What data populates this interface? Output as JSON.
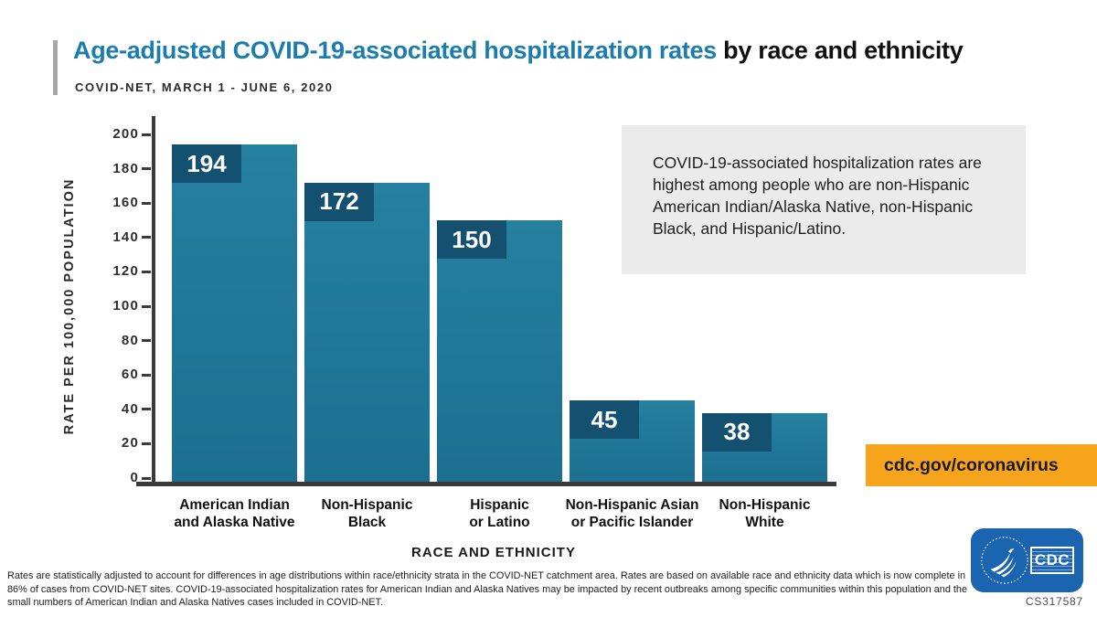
{
  "header": {
    "title_highlight": "Age-adjusted COVID-19-associated hospitalization rates",
    "title_rest": " by race and ethnicity",
    "subtitle": "COVID-NET, MARCH 1 - JUNE 6, 2020",
    "accent_color": "#1B7CAE"
  },
  "chart_data": {
    "type": "bar",
    "title": "Age-adjusted COVID-19-associated hospitalization rates by race and ethnicity",
    "subtitle": "COVID-NET, MARCH 1 - JUNE 6, 2020",
    "categories": [
      "American Indian and Alaska Native",
      "Non-Hispanic Black",
      "Hispanic or Latino",
      "Non-Hispanic Asian or Pacific Islander",
      "Non-Hispanic White"
    ],
    "category_lines": [
      [
        "American Indian",
        "and Alaska Native"
      ],
      [
        "Non-Hispanic",
        "Black"
      ],
      [
        "Hispanic",
        "or Latino"
      ],
      [
        "Non-Hispanic Asian",
        "or Pacific Islander"
      ],
      [
        "Non-Hispanic",
        "White"
      ]
    ],
    "values": [
      194,
      172,
      150,
      45,
      38
    ],
    "xlabel": "RACE AND ETHNICITY",
    "ylabel": "RATE PER 100,000 POPULATION",
    "ylim": [
      0,
      200
    ],
    "ytick_step": 20,
    "grid": false,
    "legend": "none",
    "bar_color": "#1E7495",
    "value_box_color": "#14506F"
  },
  "callout": {
    "text": "COVID-19-associated hospitalization rates are highest among people who are non-Hispanic American Indian/Alaska Native, non-Hispanic Black, and Hispanic/Latino.",
    "bg": "#EBEBEB"
  },
  "badge": {
    "label": "cdc.gov/coronavirus",
    "bg": "#F7A41D"
  },
  "logo": {
    "org": "CDC"
  },
  "cs_number": "CS317587",
  "footnote": {
    "lines": [
      "Rates are statistically adjusted to account for differences in age distributions within race/ethnicity strata in the COVID-NET catchment area. Rates are based on available race and ethnicity data which is now complete in",
      "86% of cases from COVID-NET sites. COVID-19-associated hospitalization rates for American Indian and Alaska Natives may be impacted by recent outbreaks among specific communities within this population and the",
      "small numbers of American Indian and Alaska Natives cases included in COVID-NET."
    ]
  }
}
